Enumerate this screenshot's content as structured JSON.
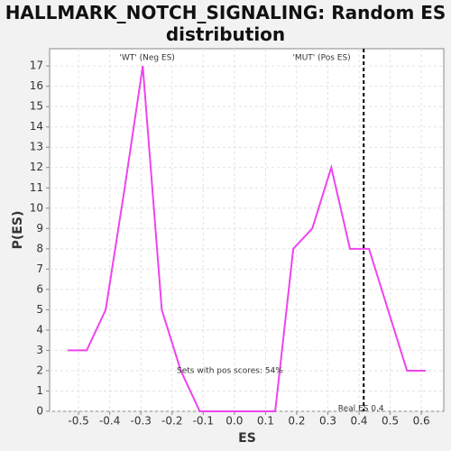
{
  "chart_data": {
    "type": "line",
    "title": "HALLMARK_NOTCH_SIGNALING: Random ES distribution",
    "xlabel": "ES",
    "ylabel": "P(ES)",
    "x": [
      -0.535,
      -0.474,
      -0.413,
      -0.352,
      -0.294,
      -0.233,
      -0.172,
      -0.111,
      -0.051,
      0.01,
      0.071,
      0.131,
      0.189,
      0.25,
      0.311,
      0.371,
      0.432,
      0.493,
      0.554,
      0.614
    ],
    "values": [
      3,
      3,
      5,
      11,
      17,
      5,
      2,
      0,
      0,
      0,
      0,
      0,
      8,
      9,
      12,
      8,
      8,
      5,
      2,
      2
    ],
    "color": "#ee44ee",
    "xlim": [
      -0.593,
      0.672
    ],
    "ylim": [
      0,
      17.85
    ],
    "xticks": [
      -0.5,
      -0.4,
      -0.3,
      -0.2,
      -0.1,
      {
        "value": 0,
        "label": "0.0"
      },
      0.1,
      0.2,
      0.3,
      0.4,
      0.5,
      0.6
    ],
    "yticks": [
      0,
      1,
      2,
      3,
      4,
      5,
      6,
      7,
      8,
      9,
      10,
      11,
      12,
      13,
      14,
      15,
      16,
      17
    ],
    "grid": true,
    "real_es": 0.415,
    "real_es_label": "Real ES 0.4",
    "neg_label": "'WT' (Neg ES)",
    "neg_color": "#3333dd",
    "pos_label": "'MUT' (Pos ES)",
    "pos_color": "#dd3333",
    "annotation": "Sets with pos scores: 54%"
  }
}
